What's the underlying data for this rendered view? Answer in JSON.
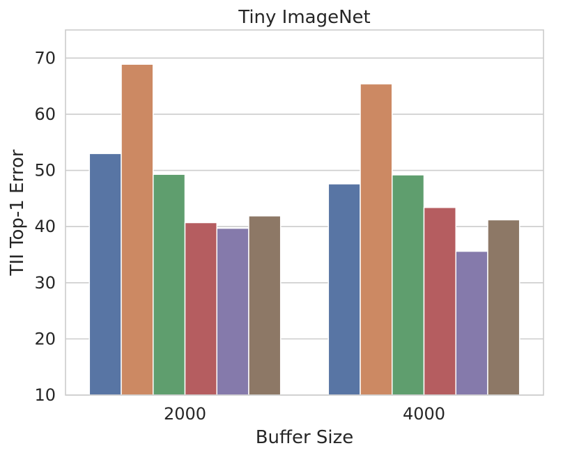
{
  "chart_data": {
    "type": "bar",
    "title": "Tiny ImageNet",
    "xlabel": "Buffer Size",
    "ylabel": "TII Top-1 Error",
    "categories": [
      "2000",
      "4000"
    ],
    "series": [
      {
        "color": "#5875a4",
        "values": [
          53.0,
          47.6
        ]
      },
      {
        "color": "#cc8963",
        "values": [
          68.9,
          65.4
        ]
      },
      {
        "color": "#5f9e6e",
        "values": [
          49.3,
          49.2
        ]
      },
      {
        "color": "#b55d60",
        "values": [
          40.7,
          43.4
        ]
      },
      {
        "color": "#857aab",
        "values": [
          39.7,
          35.6
        ]
      },
      {
        "color": "#8d7866",
        "values": [
          41.9,
          41.2
        ]
      }
    ],
    "ylim": [
      10,
      75
    ],
    "yticks": [
      10,
      20,
      30,
      40,
      50,
      60,
      70
    ],
    "grid": true,
    "legend": "none"
  }
}
